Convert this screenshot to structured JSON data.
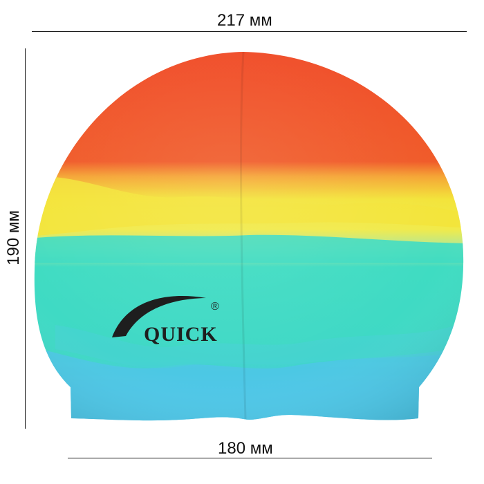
{
  "dimensions": {
    "width_label": "217 мм",
    "height_label": "190 мм",
    "base_label": "180 мм"
  },
  "product": {
    "brand_logo_text": "QUICK",
    "registered_mark": "®",
    "colors": {
      "red": "#f04a26",
      "orange": "#f56e2a",
      "yellow": "#f3e43a",
      "turquoise": "#3fdcc2",
      "light_blue": "#4ec7e6",
      "logo": "#1e1e1e"
    }
  }
}
